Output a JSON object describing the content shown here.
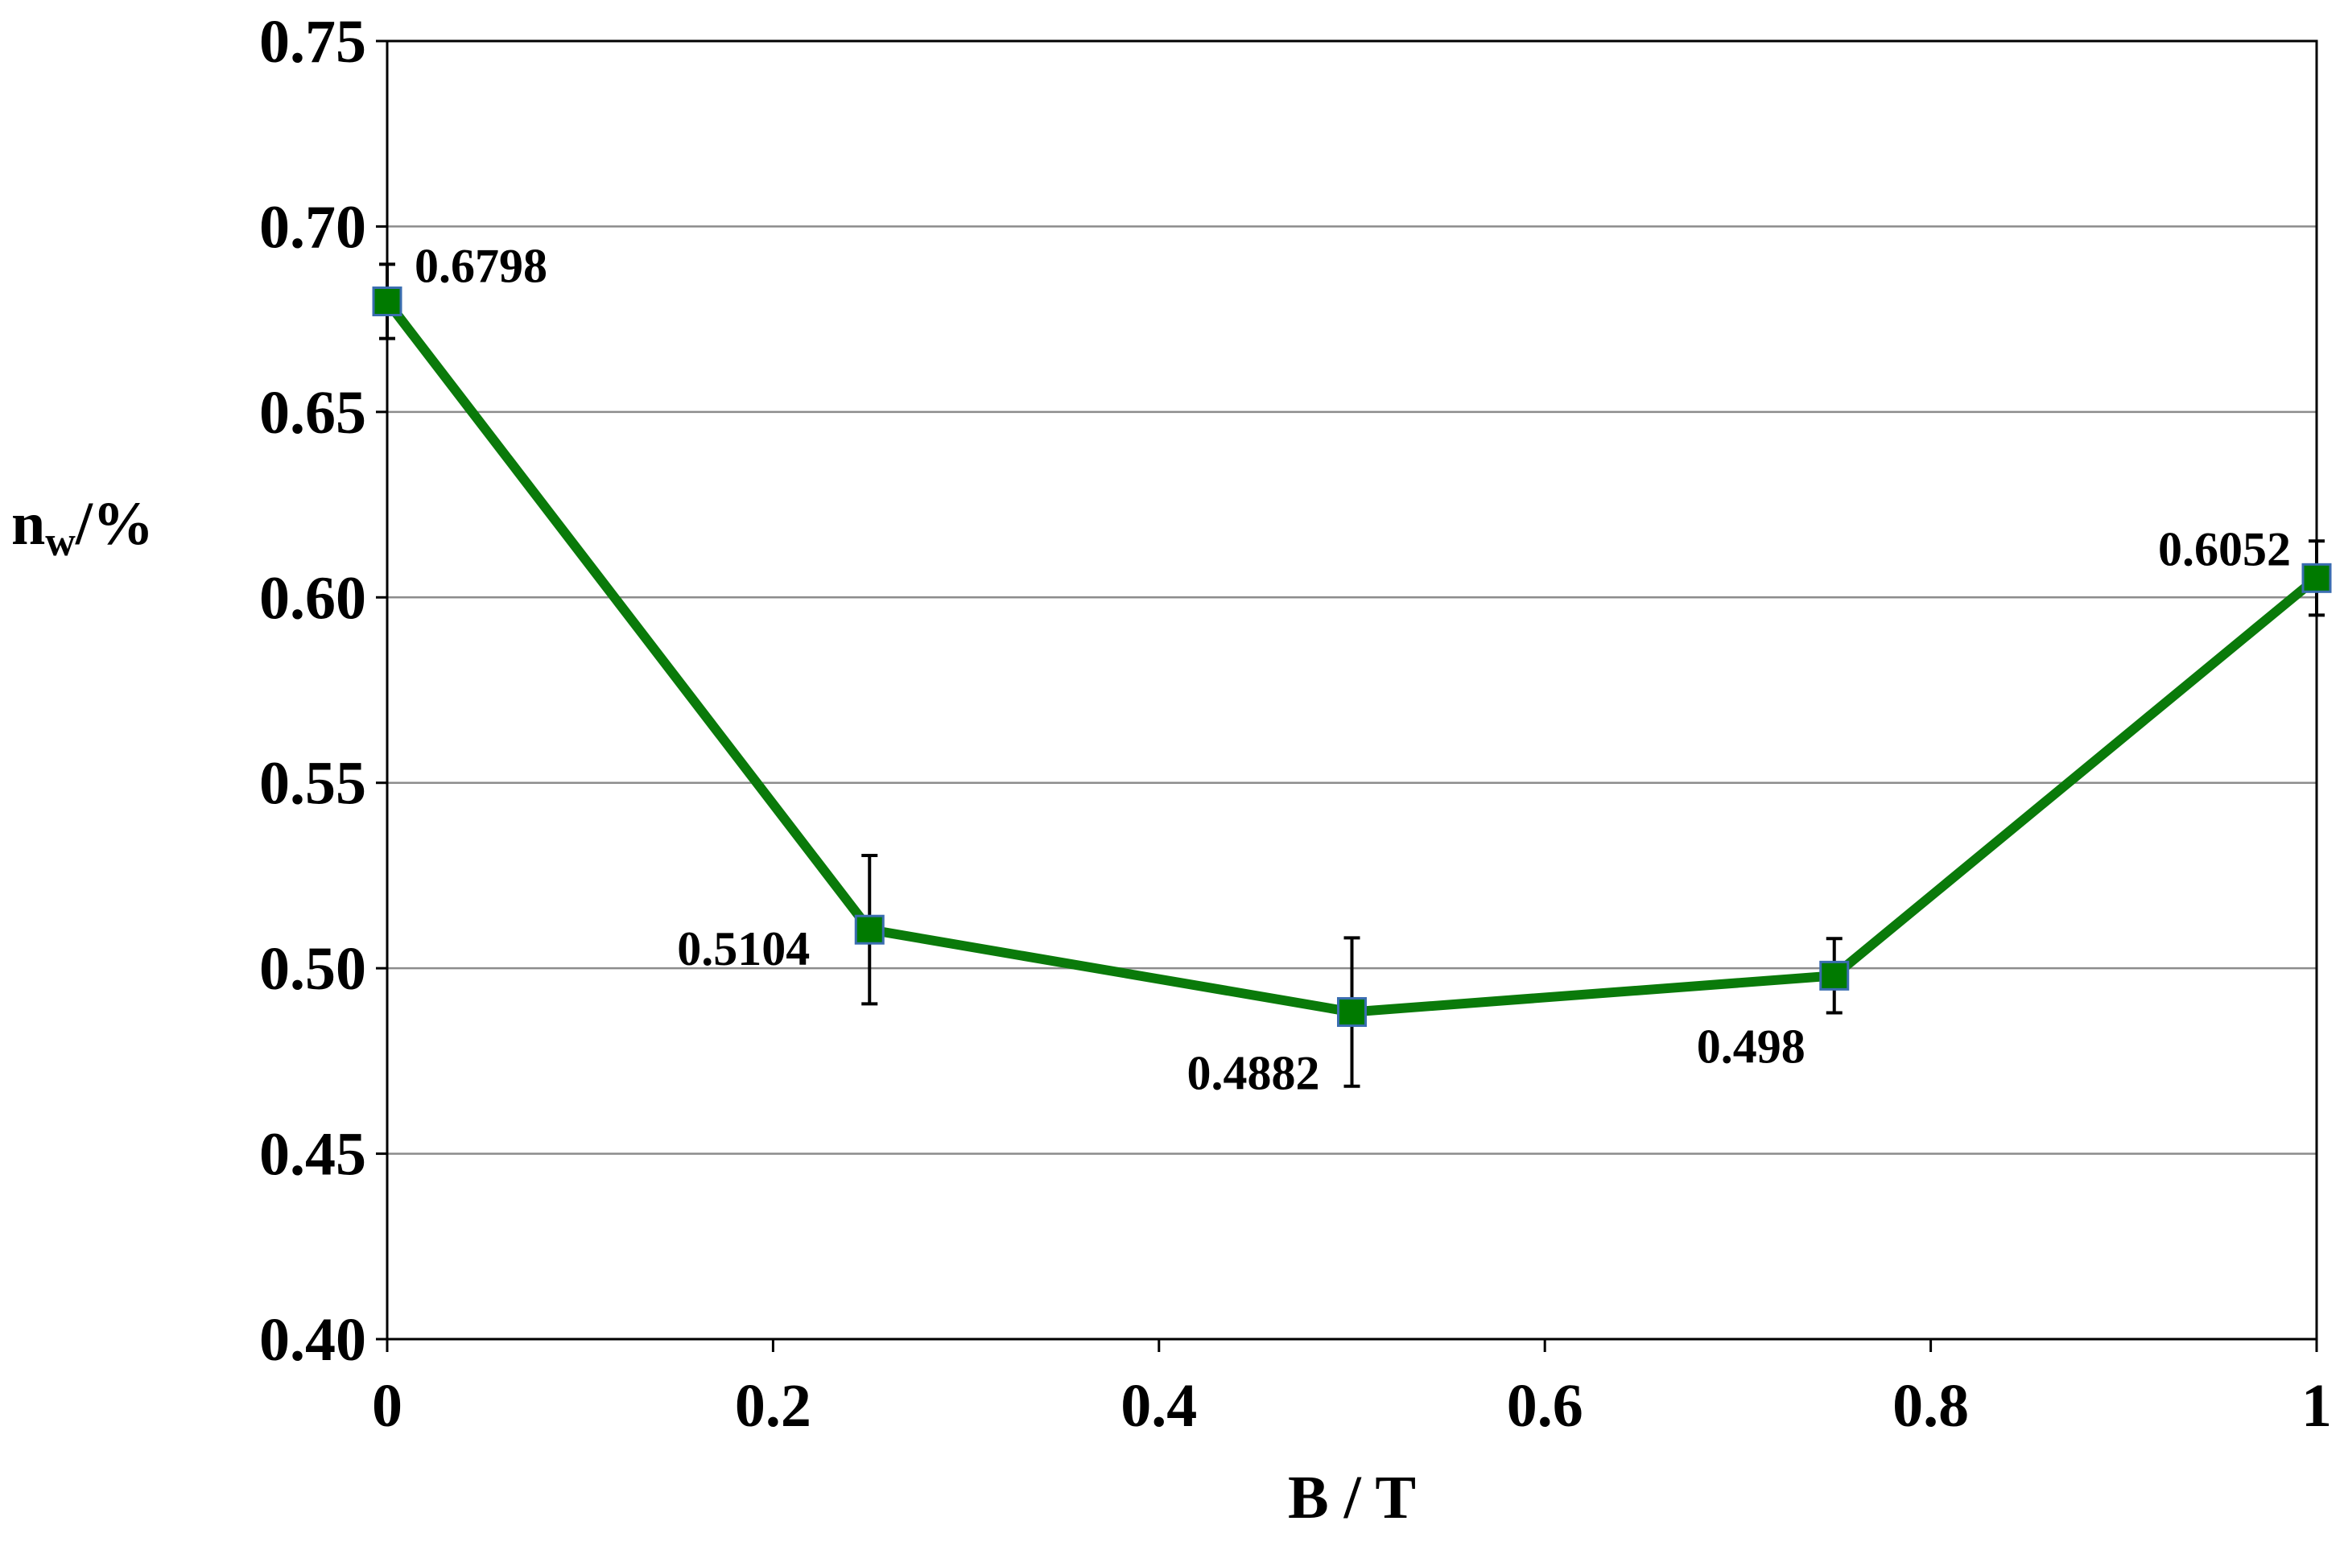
{
  "chart_data": {
    "type": "line",
    "title": "",
    "xlabel": "B / T",
    "ylabel_main": "n",
    "ylabel_sub": "w",
    "ylabel_suffix": "/%",
    "xlim": [
      0,
      1
    ],
    "ylim": [
      0.4,
      0.75
    ],
    "grid": true,
    "x_ticks": [
      0,
      0.2,
      0.4,
      0.6,
      0.8,
      1
    ],
    "x_tick_labels": [
      "0",
      "0.2",
      "0.4",
      "0.6",
      "0.8",
      "1"
    ],
    "y_ticks": [
      0.4,
      0.45,
      0.5,
      0.55,
      0.6,
      0.65,
      0.7,
      0.75
    ],
    "y_tick_labels": [
      "0.40",
      "0.45",
      "0.50",
      "0.55",
      "0.60",
      "0.65",
      "0.70",
      "0.75"
    ],
    "series": [
      {
        "name": "n_w",
        "color": "#0a7a0a",
        "marker_color": "#007a00",
        "marker_edge": "#3a6db0",
        "x": [
          0,
          0.25,
          0.5,
          0.75,
          1
        ],
        "y": [
          0.6798,
          0.5104,
          0.4882,
          0.498,
          0.6052
        ],
        "error": [
          0.01,
          0.02,
          0.02,
          0.01,
          0.01
        ],
        "labels": [
          "0.6798",
          "0.5104",
          "0.4882",
          "0.498",
          "0.6052"
        ]
      }
    ]
  }
}
